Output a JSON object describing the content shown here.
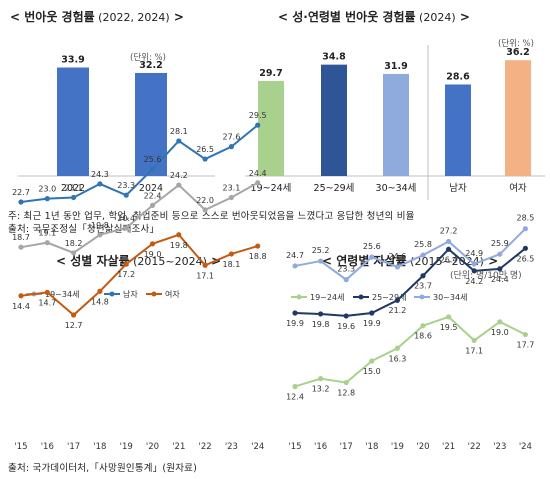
{
  "panels": {
    "p1": {
      "title_prefix": "< ",
      "title_main": "번아웃 경험률",
      "title_sub": " (2022, 2024)",
      "title_suffix": " >",
      "unit": "(단위: %)"
    },
    "p2": {
      "title_prefix": "< ",
      "title_main": "성·연령별 번아웃 경험률",
      "title_sub": " (2024)",
      "title_suffix": " >",
      "unit": "(단위: %)"
    },
    "p3": {
      "title_prefix": "< ",
      "title_main": "성별 자살률",
      "title_sub": " (2015~2024)",
      "title_suffix": " >"
    },
    "p4": {
      "title_prefix": "< ",
      "title_main": "연령별 자살률",
      "title_sub": " (2015~2024)",
      "title_suffix": " >",
      "unit": "(단위: 명/10만 명)"
    }
  },
  "notes": {
    "line1": "주: 최근 1년 동안 업무, 학업, 취업준비 등으로 스스로 번아웃되었음을 느꼈다고 응답한 청년의 비율",
    "line2": "출처: 국무조정실「청년삶실태조사」",
    "source_bottom": "출처: 국가데이터처,「사망원인통계」(원자료)"
  },
  "chart_data": [
    {
      "type": "bar",
      "categories": [
        "2022",
        "2024"
      ],
      "values": [
        33.9,
        32.2
      ],
      "value_labels": [
        "33.9",
        "32.2"
      ],
      "colors": [
        "#4472c4",
        "#4472c4"
      ],
      "ylim": [
        0,
        40
      ]
    },
    {
      "type": "bar",
      "categories": [
        "19~24세",
        "25~29세",
        "30~34세",
        "남자",
        "여자"
      ],
      "values": [
        29.7,
        34.8,
        31.9,
        28.6,
        36.2
      ],
      "value_labels": [
        "29.7",
        "34.8",
        "31.9",
        "28.6",
        "36.2"
      ],
      "colors": [
        "#a9d18e",
        "#2f5597",
        "#8faadc",
        "#4472c4",
        "#f4b183"
      ],
      "ylim": [
        0,
        40
      ]
    },
    {
      "type": "line",
      "x": [
        "'15",
        "'16",
        "'17",
        "'18",
        "'19",
        "'20",
        "'21",
        "'22",
        "'23",
        "'24"
      ],
      "series": [
        {
          "name": "19~34세",
          "color": "#a6a6a6",
          "values": [
            18.7,
            19.1,
            18.2,
            19.8,
            20.4,
            22.4,
            24.2,
            22.0,
            23.1,
            24.4
          ],
          "labels": [
            "18.7",
            "19.1",
            "18.2",
            "19.8",
            "20.4",
            "22.4",
            "24.2",
            "22.0",
            "23.1",
            "24.4"
          ]
        },
        {
          "name": "남자",
          "color": "#2e75b6",
          "values": [
            22.7,
            23.0,
            23.1,
            24.3,
            23.3,
            25.6,
            28.1,
            26.5,
            27.6,
            29.5
          ],
          "labels": [
            "22.7",
            "23.0",
            "23.1",
            "24.3",
            "23.3",
            "25.6",
            "28.1",
            "26.5",
            "27.6",
            "29.5"
          ]
        },
        {
          "name": "여자",
          "color": "#c55a11",
          "values": [
            14.4,
            14.7,
            12.7,
            14.8,
            17.2,
            19.0,
            19.8,
            17.1,
            18.1,
            18.8
          ],
          "labels": [
            "14.4",
            "14.7",
            "12.7",
            "14.8",
            "17.2",
            "19.0",
            "19.8",
            "17.1",
            "18.1",
            "18.8"
          ]
        }
      ]
    },
    {
      "type": "line",
      "x": [
        "'15",
        "'16",
        "'17",
        "'18",
        "'19",
        "'20",
        "'21",
        "'22",
        "'23",
        "'24"
      ],
      "series": [
        {
          "name": "19~24세",
          "color": "#a9d18e",
          "values": [
            12.4,
            13.2,
            12.8,
            15.0,
            16.3,
            18.6,
            19.5,
            17.1,
            19.0,
            17.7
          ],
          "labels": [
            "12.4",
            "13.2",
            "12.8",
            "15.0",
            "16.3",
            "18.6",
            "19.5",
            "17.1",
            "19.0",
            "17.7"
          ]
        },
        {
          "name": "25~29세",
          "color": "#203864",
          "values": [
            19.9,
            19.8,
            19.6,
            19.9,
            21.2,
            23.7,
            26.4,
            24.2,
            24.4,
            26.5
          ],
          "labels": [
            "19.9",
            "19.8",
            "19.6",
            "19.9",
            "21.2",
            "23.7",
            "26.4",
            "24.2",
            "24.4",
            "26.5"
          ]
        },
        {
          "name": "30~34세",
          "color": "#8faadc",
          "values": [
            24.7,
            25.2,
            23.3,
            25.6,
            24.6,
            25.8,
            27.2,
            24.9,
            25.9,
            28.5
          ],
          "labels": [
            "24.7",
            "25.2",
            "23.3",
            "25.6",
            "24.6",
            "25.8",
            "27.2",
            "24.9",
            "25.9",
            "28.5"
          ]
        }
      ]
    }
  ]
}
